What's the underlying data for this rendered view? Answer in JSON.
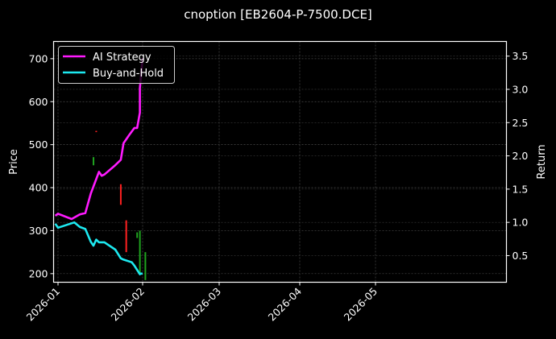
{
  "chart_data": {
    "type": "line",
    "title": "cnoption [EB2604-P-7500.DCE]",
    "xlabel": "",
    "ylabel": "Price",
    "ylabel_right": "Return",
    "ylim": [
      180,
      740
    ],
    "ylim_right": [
      0.1,
      3.72
    ],
    "grid": true,
    "legend_position": "upper left",
    "x_ticks": [
      "2026-01",
      "2026-02",
      "2026-03",
      "2026-04",
      "2026-05"
    ],
    "y_ticks": [
      200,
      300,
      400,
      500,
      600,
      700
    ],
    "y_ticks_right": [
      0.5,
      1.0,
      1.5,
      2.0,
      2.5,
      3.0,
      3.5
    ],
    "series": [
      {
        "name": "AI Strategy",
        "color": "#ff1aff",
        "axis": "right",
        "points": [
          [
            "2025-12-31",
            1.1
          ],
          [
            "2026-01-01",
            1.13
          ],
          [
            "2026-01-06",
            1.05
          ],
          [
            "2026-01-09",
            1.12
          ],
          [
            "2026-01-11",
            1.14
          ],
          [
            "2026-01-13",
            1.43
          ],
          [
            "2026-01-15",
            1.65
          ],
          [
            "2026-01-16",
            1.76
          ],
          [
            "2026-01-17",
            1.7
          ],
          [
            "2026-01-18",
            1.72
          ],
          [
            "2026-01-22",
            1.86
          ],
          [
            "2026-01-24",
            1.94
          ],
          [
            "2026-01-25",
            2.19
          ],
          [
            "2026-01-27",
            2.31
          ],
          [
            "2026-01-29",
            2.42
          ],
          [
            "2026-01-30",
            2.42
          ],
          [
            "2026-01-31",
            2.65
          ],
          [
            "2026-01-31",
            3.02
          ],
          [
            "2026-02-01",
            3.47
          ]
        ]
      },
      {
        "name": "Buy-and-Hold",
        "color": "#1de9f0",
        "axis": "right",
        "points": [
          [
            "2025-12-31",
            0.98
          ],
          [
            "2026-01-01",
            0.92
          ],
          [
            "2026-01-07",
            1.0
          ],
          [
            "2026-01-09",
            0.93
          ],
          [
            "2026-01-11",
            0.9
          ],
          [
            "2026-01-13",
            0.71
          ],
          [
            "2026-01-14",
            0.65
          ],
          [
            "2026-01-15",
            0.74
          ],
          [
            "2026-01-16",
            0.7
          ],
          [
            "2026-01-18",
            0.7
          ],
          [
            "2026-01-22",
            0.59
          ],
          [
            "2026-01-24",
            0.46
          ],
          [
            "2026-01-25",
            0.44
          ],
          [
            "2026-01-28",
            0.4
          ],
          [
            "2026-01-29",
            0.35
          ],
          [
            "2026-01-31",
            0.22
          ],
          [
            "2026-01-31",
            0.23
          ],
          [
            "2026-02-01",
            0.23
          ]
        ]
      }
    ],
    "candles": [
      {
        "date": "2026-01-14",
        "high": 471,
        "low": 452,
        "color": "#1fa31f"
      },
      {
        "date": "2026-01-15",
        "high": 532,
        "low": 531,
        "color": "#ff2020"
      },
      {
        "date": "2026-01-24",
        "high": 408,
        "low": 360,
        "color": "#ff2020"
      },
      {
        "date": "2026-01-26",
        "high": 324,
        "low": 250,
        "color": "#ff2020"
      },
      {
        "date": "2026-01-30",
        "high": 296,
        "low": 283,
        "color": "#1fa31f"
      },
      {
        "date": "2026-01-31",
        "high": 300,
        "low": 200,
        "color": "#1fa31f"
      },
      {
        "date": "2026-02-02",
        "high": 250,
        "low": 185,
        "color": "#1fa31f"
      }
    ]
  },
  "colors": {
    "background": "#000000",
    "axes": "#ffffff",
    "grid": "#555555",
    "up": "#1fa31f",
    "down": "#ff2020"
  }
}
